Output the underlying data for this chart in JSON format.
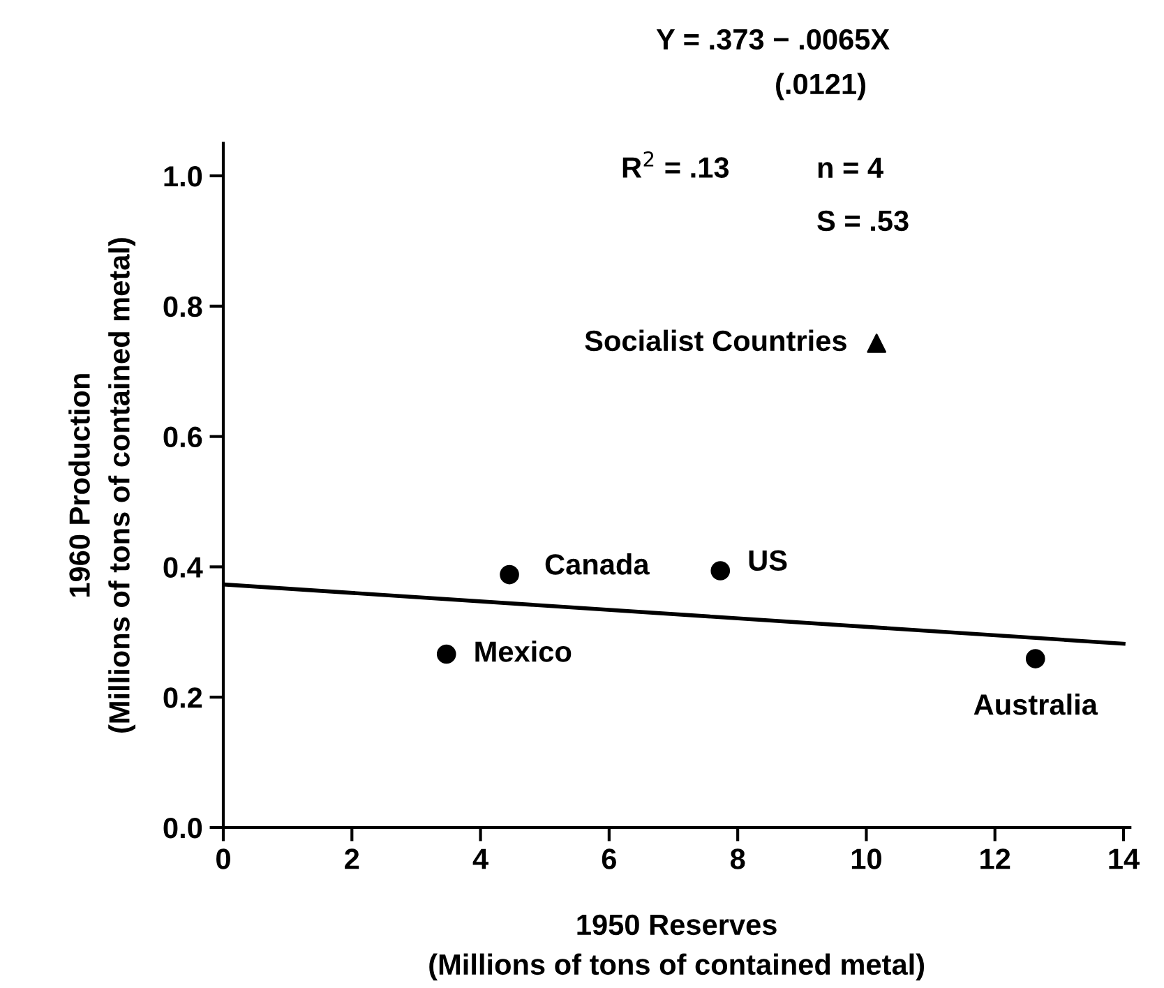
{
  "chart_data": {
    "type": "scatter",
    "xlabel": "1950 Reserves\n(Millions of tons of contained metal)",
    "ylabel": "1960 Production\n(Millions of tons of contained metal)",
    "xlim": [
      0,
      14.1
    ],
    "ylim": [
      0,
      1.05
    ],
    "xticks": [
      0,
      2,
      4,
      6,
      8,
      10,
      12,
      14
    ],
    "yticks": [
      {
        "value": 0,
        "label": "0.0"
      },
      {
        "value": 0.2,
        "label": "0.2"
      },
      {
        "value": 0.4,
        "label": "0.4"
      },
      {
        "value": 0.6,
        "label": "0.6"
      },
      {
        "value": 0.8,
        "label": "0.8"
      },
      {
        "value": 1.0,
        "label": "1.0"
      }
    ],
    "grid": false,
    "legend": false,
    "series": [
      {
        "marker": "circle",
        "color": "#000000",
        "x": [
          3.47,
          4.45,
          7.73,
          12.63
        ],
        "values": [
          0.266,
          0.388,
          0.394,
          0.259
        ]
      },
      {
        "marker": "triangle",
        "color": "#000000",
        "x": [
          10.16
        ],
        "values": [
          0.743
        ]
      },
      {
        "type": "line",
        "line_style": "solid",
        "color": "#000000",
        "x": [
          0,
          14
        ],
        "values": [
          0.373,
          0.282
        ]
      }
    ],
    "annotations": [
      {
        "text": "Mexico",
        "x": 3.47,
        "y": 0.266
      },
      {
        "text": "Canada",
        "x": 4.45,
        "y": 0.388
      },
      {
        "text": "US",
        "x": 7.73,
        "y": 0.394
      },
      {
        "text": "Australia",
        "x": 12.63,
        "y": 0.259
      },
      {
        "text": "Socialist Countries",
        "x": 10.16,
        "y": 0.743
      },
      "Y = .373 − .0065X",
      "(.0121)",
      "R$^{2}$ = .13",
      "n = 4",
      "S = .53"
    ]
  }
}
